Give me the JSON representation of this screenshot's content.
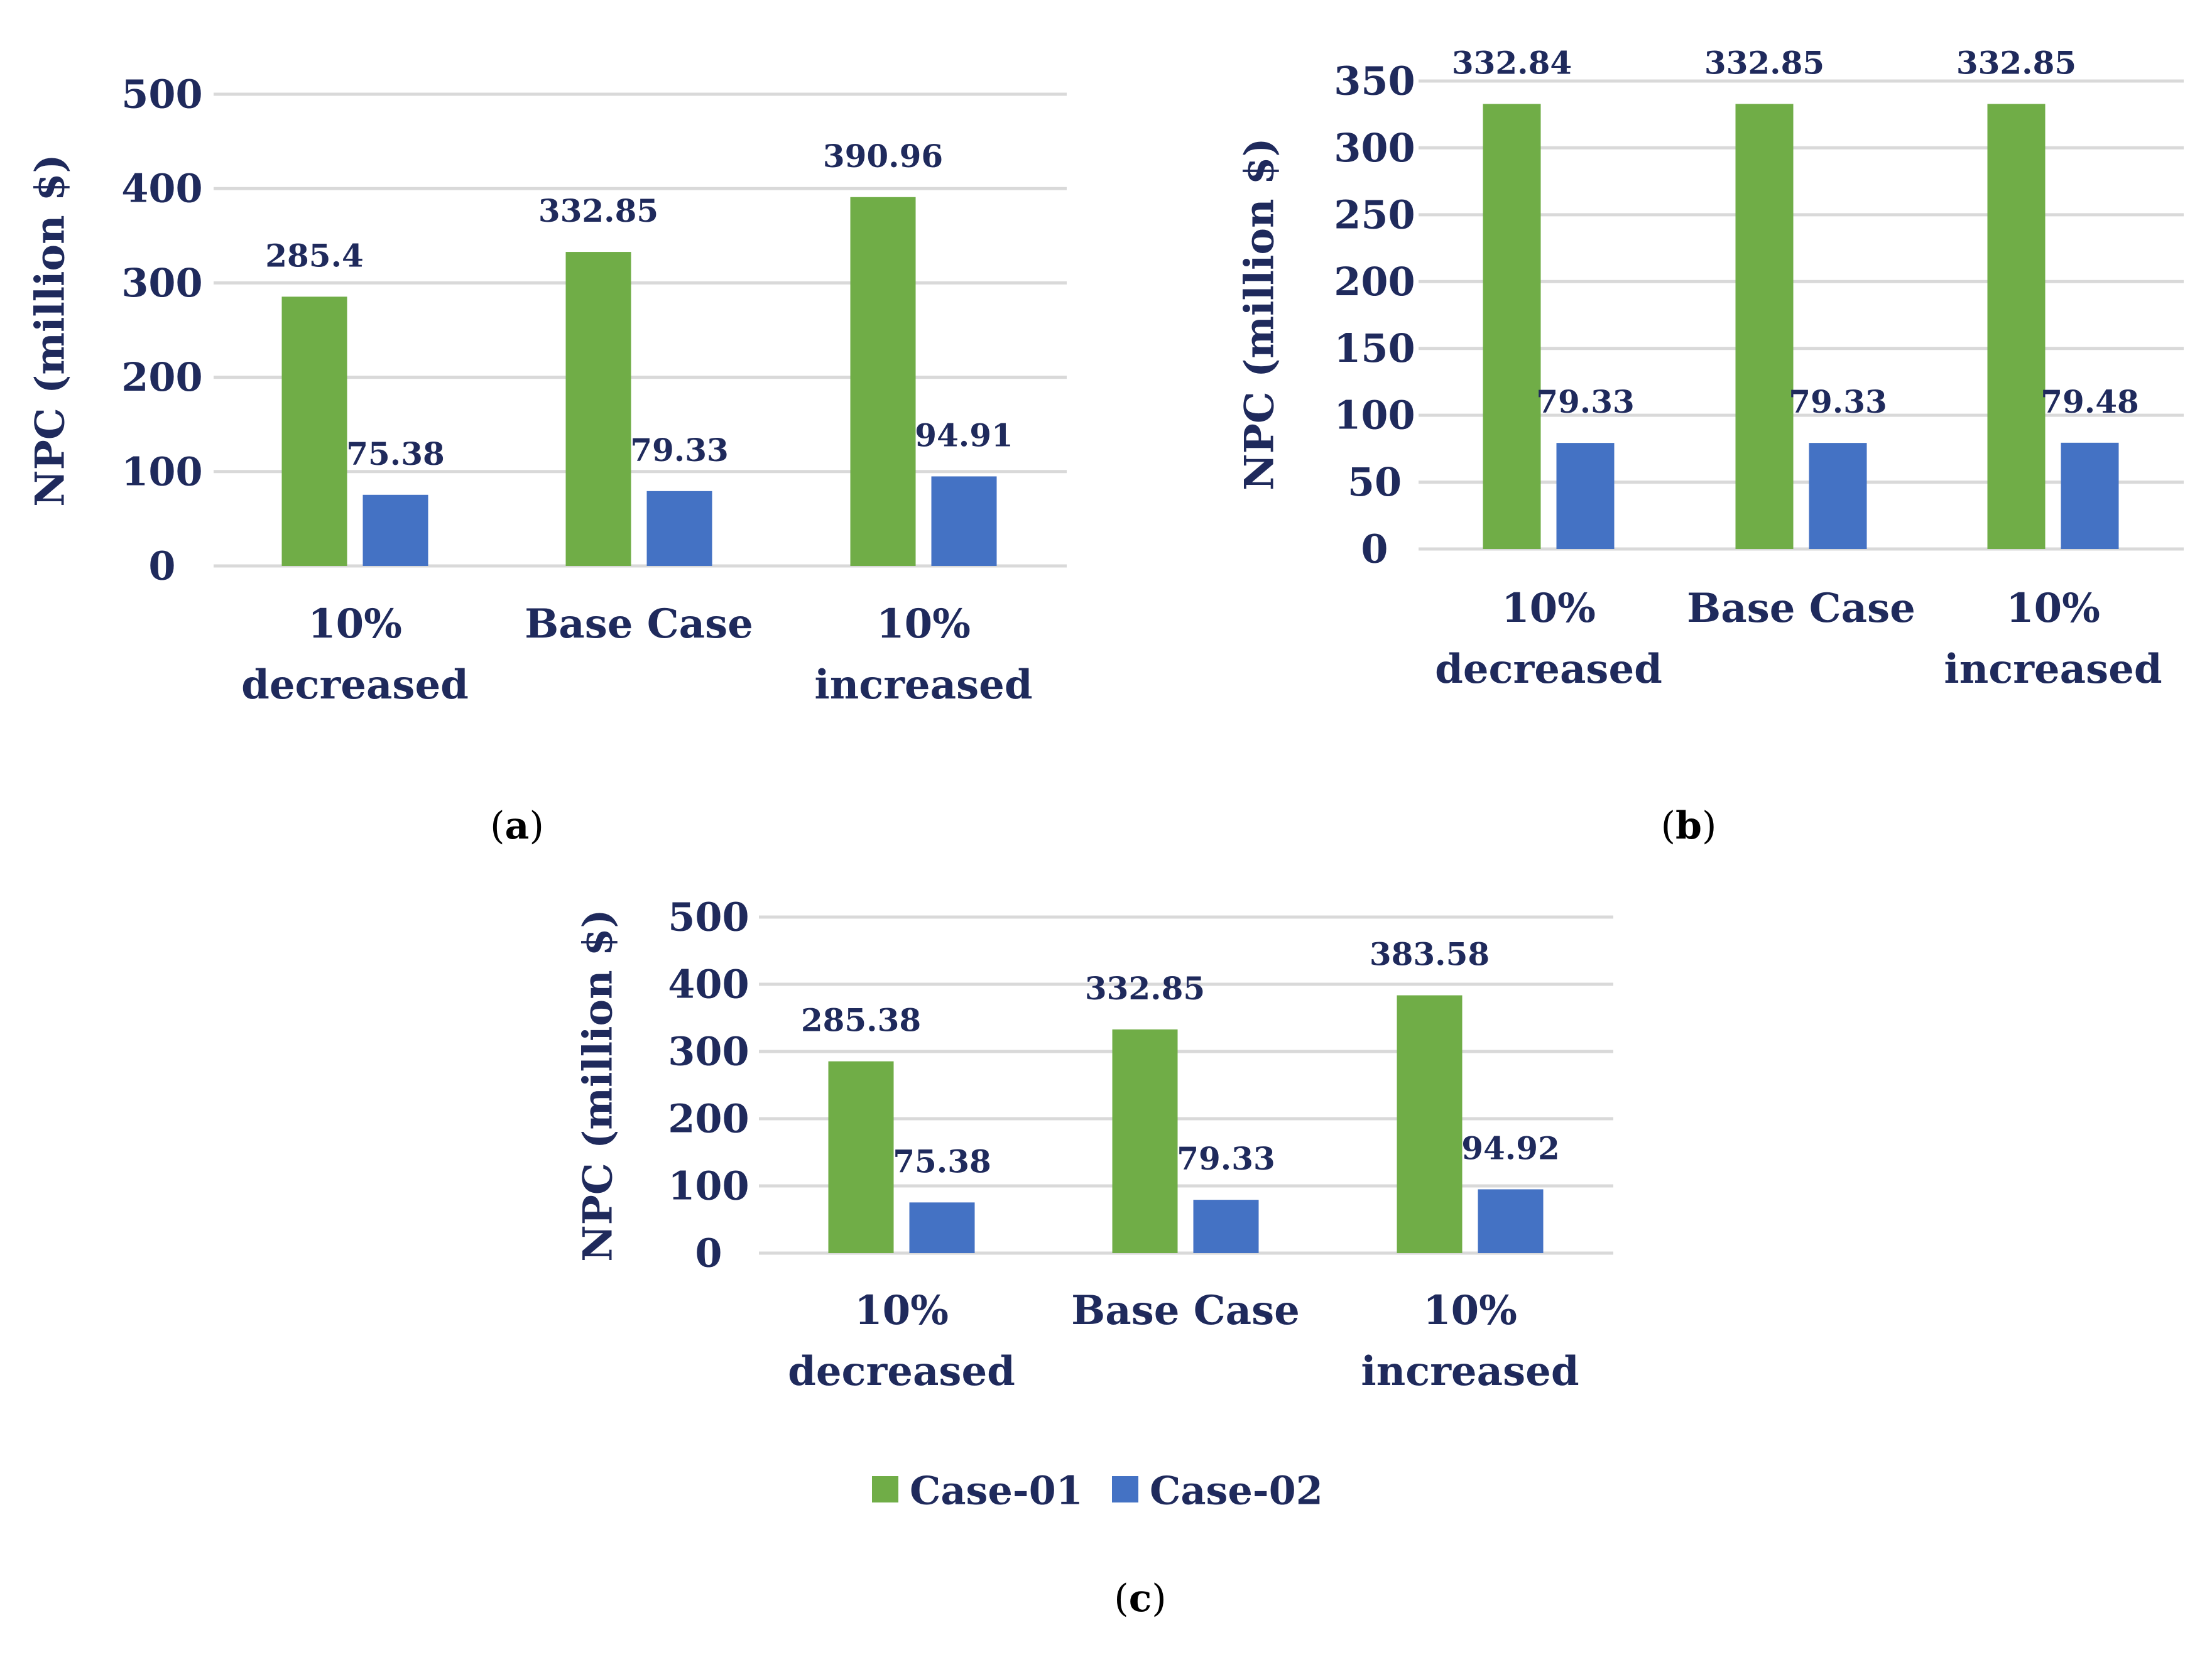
{
  "colors": {
    "series1": "#70AD47",
    "series2": "#4472C4",
    "text": "#1F2A5C",
    "grid": "#D9D9D9"
  },
  "legend": {
    "items": [
      "Case-01",
      "Case-02"
    ],
    "placement": "bottom-center"
  },
  "chart_data": [
    {
      "type": "bar",
      "panel_label": "(a)",
      "categories": [
        [
          "10%",
          "decreased"
        ],
        [
          "Base Case"
        ],
        [
          "10%",
          "increased"
        ]
      ],
      "series": [
        {
          "name": "Case-01",
          "values": [
            285.4,
            332.85,
            390.96
          ],
          "labels": [
            "285.4",
            "332.85",
            "390.96"
          ]
        },
        {
          "name": "Case-02",
          "values": [
            75.38,
            79.33,
            94.91
          ],
          "labels": [
            "75.38",
            "79.33",
            "94.91"
          ]
        }
      ],
      "ylabel": "NPC (million $)",
      "ylim": [
        0,
        500
      ],
      "yticks": [
        0,
        100,
        200,
        300,
        400,
        500
      ],
      "grid": true
    },
    {
      "type": "bar",
      "panel_label": "(b)",
      "categories": [
        [
          "10%",
          "decreased"
        ],
        [
          "Base Case"
        ],
        [
          "10%",
          "increased"
        ]
      ],
      "series": [
        {
          "name": "Case-01",
          "values": [
            332.84,
            332.85,
            332.85
          ],
          "labels": [
            "332.84",
            "332.85",
            "332.85"
          ]
        },
        {
          "name": "Case-02",
          "values": [
            79.33,
            79.33,
            79.48
          ],
          "labels": [
            "79.33",
            "79.33",
            "79.48"
          ]
        }
      ],
      "ylabel": "NPC (million $)",
      "ylim": [
        0,
        350
      ],
      "yticks": [
        0,
        50,
        100,
        150,
        200,
        250,
        300,
        350
      ],
      "grid": true
    },
    {
      "type": "bar",
      "panel_label": "(c)",
      "categories": [
        [
          "10%",
          "decreased"
        ],
        [
          "Base Case"
        ],
        [
          "10%",
          "increased"
        ]
      ],
      "series": [
        {
          "name": "Case-01",
          "values": [
            285.38,
            332.85,
            383.58
          ],
          "labels": [
            "285.38",
            "332.85",
            "383.58"
          ]
        },
        {
          "name": "Case-02",
          "values": [
            75.38,
            79.33,
            94.92
          ],
          "labels": [
            "75.38",
            "79.33",
            "94.92"
          ]
        }
      ],
      "ylabel": "NPC (million $)",
      "ylim": [
        0,
        500
      ],
      "yticks": [
        0,
        100,
        200,
        300,
        400,
        500
      ],
      "grid": true
    }
  ]
}
